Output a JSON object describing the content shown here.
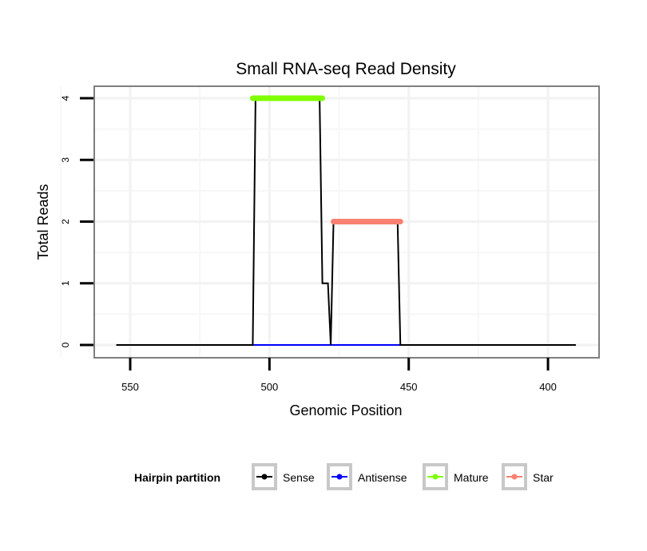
{
  "chart_data": {
    "type": "line",
    "title": "Small RNA-seq Read Density",
    "xlabel": "Genomic Position",
    "ylabel": "Total Reads",
    "xlim": [
      557,
      387
    ],
    "ylim": [
      -0.2,
      4.2
    ],
    "x_reversed": true,
    "xticks": [
      550,
      500,
      450,
      400
    ],
    "yticks": [
      0,
      1,
      2,
      3,
      4
    ],
    "grid": true,
    "legend": {
      "title": "Hairpin partition",
      "placement": "bottom",
      "entries": [
        {
          "name": "Sense",
          "color": "#000000"
        },
        {
          "name": "Antisense",
          "color": "#0000ff"
        },
        {
          "name": "Mature",
          "color": "#7fff00"
        },
        {
          "name": "Star",
          "color": "#fa8072"
        }
      ]
    },
    "series": [
      {
        "name": "Sense",
        "color": "#000000",
        "points": [
          [
            555,
            0
          ],
          [
            506,
            0
          ],
          [
            505,
            4
          ],
          [
            482,
            4
          ],
          [
            481,
            1
          ],
          [
            479,
            1
          ],
          [
            478,
            0
          ],
          [
            477,
            2
          ],
          [
            454,
            2
          ],
          [
            453,
            0
          ],
          [
            390,
            0
          ]
        ]
      },
      {
        "name": "Antisense",
        "color": "#0000ff",
        "points": [
          [
            506,
            0
          ],
          [
            453,
            0
          ]
        ]
      },
      {
        "name": "Mature",
        "color": "#7fff00",
        "points": [
          [
            506,
            4
          ],
          [
            481,
            4
          ]
        ]
      },
      {
        "name": "Star",
        "color": "#fa8072",
        "points": [
          [
            477,
            2
          ],
          [
            453,
            2
          ]
        ]
      }
    ]
  }
}
